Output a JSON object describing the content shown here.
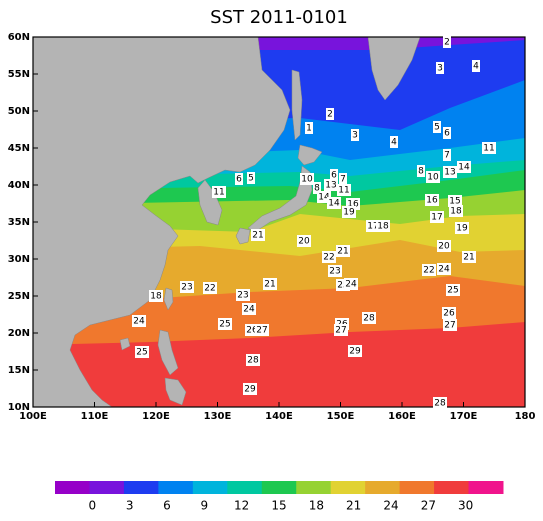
{
  "chart_data": {
    "type": "contour-map",
    "title": "SST 2011-0101",
    "xlim": [
      100,
      180
    ],
    "ylim": [
      10,
      60
    ],
    "xticks": [
      {
        "value": 100,
        "label": "100E"
      },
      {
        "value": 110,
        "label": "110E"
      },
      {
        "value": 120,
        "label": "120E"
      },
      {
        "value": 130,
        "label": "130E"
      },
      {
        "value": 140,
        "label": "140E"
      },
      {
        "value": 150,
        "label": "150E"
      },
      {
        "value": 160,
        "label": "160E"
      },
      {
        "value": 170,
        "label": "170E"
      },
      180
    ],
    "yticks": [
      {
        "value": 10,
        "label": "10N"
      },
      {
        "value": 15,
        "label": "15N"
      },
      {
        "value": 20,
        "label": "20N"
      },
      {
        "value": 25,
        "label": "25N"
      },
      {
        "value": 30,
        "label": "30N"
      },
      {
        "value": 35,
        "label": "35N"
      },
      {
        "value": 40,
        "label": "40N"
      },
      {
        "value": 45,
        "label": "45N"
      },
      {
        "value": 50,
        "label": "50N"
      },
      {
        "value": 55,
        "label": "55N"
      },
      {
        "value": 60,
        "label": "60N"
      }
    ],
    "colorbar": {
      "lim": [
        -3,
        33
      ],
      "ticks": [
        0,
        3,
        6,
        9,
        12,
        15,
        18,
        21,
        24,
        27,
        30
      ],
      "colors": [
        "#9600c8",
        "#7814dc",
        "#1e3cf0",
        "#0082f0",
        "#00b4dc",
        "#00c8a0",
        "#1ec850",
        "#96d232",
        "#e1d232",
        "#e6aa2d",
        "#f0782d",
        "#f03c3c",
        "#f0148c"
      ]
    },
    "contour_labels": [
      2,
      4,
      3,
      2,
      1,
      3,
      4,
      5,
      6,
      11,
      7,
      10,
      6,
      7,
      13,
      11,
      8,
      14,
      6,
      5,
      11,
      10,
      8,
      13,
      14,
      14,
      16,
      19,
      16,
      15,
      18,
      17,
      17,
      18,
      19,
      21,
      20,
      20,
      21,
      22,
      21,
      22,
      24,
      23,
      25,
      24,
      21,
      23,
      22,
      18,
      25,
      23,
      24,
      24,
      25,
      28,
      26,
      27,
      26,
      27,
      26,
      27,
      25,
      29,
      28,
      29,
      28
    ]
  }
}
